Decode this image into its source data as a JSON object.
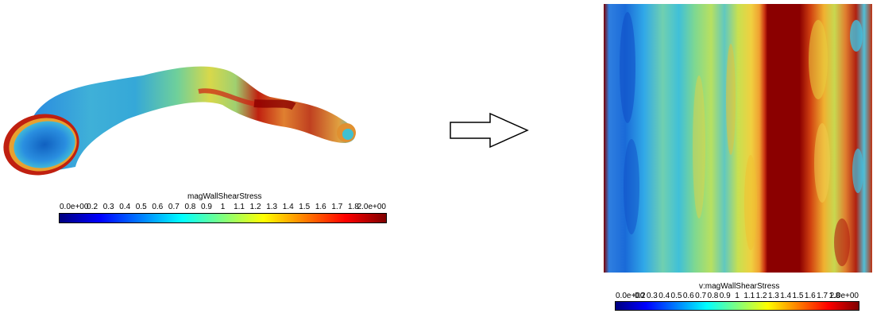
{
  "colormap": {
    "stops": [
      "#00007f",
      "#0000ff",
      "#007fff",
      "#00ffff",
      "#7fff7f",
      "#ffff00",
      "#ff7f00",
      "#ff0000",
      "#7f0000"
    ]
  },
  "left_colorbar": {
    "title": "magWallShearStress",
    "ticks": [
      "0.0e+00",
      "0.2",
      "0.3",
      "0.4",
      "0.5",
      "0.6",
      "0.7",
      "0.8",
      "0.9",
      "1",
      "1.1",
      "1.2",
      "1.3",
      "1.4",
      "1.5",
      "1.6",
      "1.7",
      "1.8",
      "2.0e+00"
    ],
    "tick_values": [
      0,
      0.2,
      0.3,
      0.4,
      0.5,
      0.6,
      0.7,
      0.8,
      0.9,
      1.0,
      1.1,
      1.2,
      1.3,
      1.4,
      1.5,
      1.6,
      1.7,
      1.8,
      2.0
    ],
    "range": [
      0,
      2
    ]
  },
  "right_colorbar": {
    "title": "v:magWallShearStress",
    "ticks": [
      "0.0e+00",
      "0.2",
      "0.3",
      "0.4",
      "0.5",
      "0.6",
      "0.7",
      "0.8",
      "0.9",
      "1",
      "1.1",
      "1.2",
      "1.3",
      "1.4",
      "1.5",
      "1.6",
      "1.7",
      "1.8",
      "2.0e+00"
    ],
    "tick_values": [
      0,
      0.2,
      0.3,
      0.4,
      0.5,
      0.6,
      0.7,
      0.8,
      0.9,
      1.0,
      1.1,
      1.2,
      1.3,
      1.4,
      1.5,
      1.6,
      1.7,
      1.8,
      2.0
    ],
    "range": [
      0,
      2
    ]
  }
}
